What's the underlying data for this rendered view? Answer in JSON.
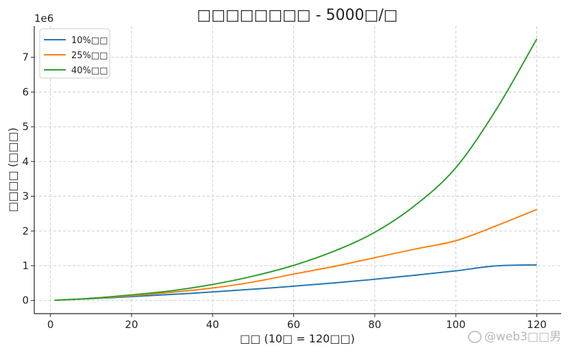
{
  "chart_data": {
    "type": "line",
    "title": "□□□□□□□□ - 5000□/□",
    "xlabel": "□□ (10□ = 120□□)",
    "ylabel": "□□□□ (□□□)",
    "offset_text": "1e6",
    "xlim": [
      -4,
      126
    ],
    "ylim": [
      -0.38,
      7.9
    ],
    "x_ticks": [
      0,
      20,
      40,
      60,
      80,
      100,
      120
    ],
    "y_ticks": [
      0,
      1,
      2,
      3,
      4,
      5,
      6,
      7
    ],
    "grid": true,
    "legend_position": "top-left",
    "x": [
      1,
      10,
      20,
      30,
      40,
      50,
      60,
      70,
      80,
      90,
      100,
      110,
      120
    ],
    "series": [
      {
        "name": "10%□□",
        "color": "#1f77b4",
        "values": [
          0.005,
          0.052,
          0.11,
          0.174,
          0.245,
          0.324,
          0.41,
          0.505,
          0.61,
          0.726,
          0.853,
          0.995,
          1.024
        ]
      },
      {
        "name": "25%□□",
        "color": "#ff7f0e",
        "values": [
          0.005,
          0.057,
          0.134,
          0.235,
          0.36,
          0.53,
          0.76,
          0.98,
          1.23,
          1.48,
          1.72,
          2.15,
          2.62
        ]
      },
      {
        "name": "40%□□",
        "color": "#2ca02c",
        "values": [
          0.005,
          0.064,
          0.16,
          0.28,
          0.46,
          0.7,
          1.01,
          1.42,
          1.96,
          2.74,
          3.82,
          5.5,
          7.53
        ]
      }
    ]
  },
  "watermark": {
    "text": "@web3□□男"
  }
}
